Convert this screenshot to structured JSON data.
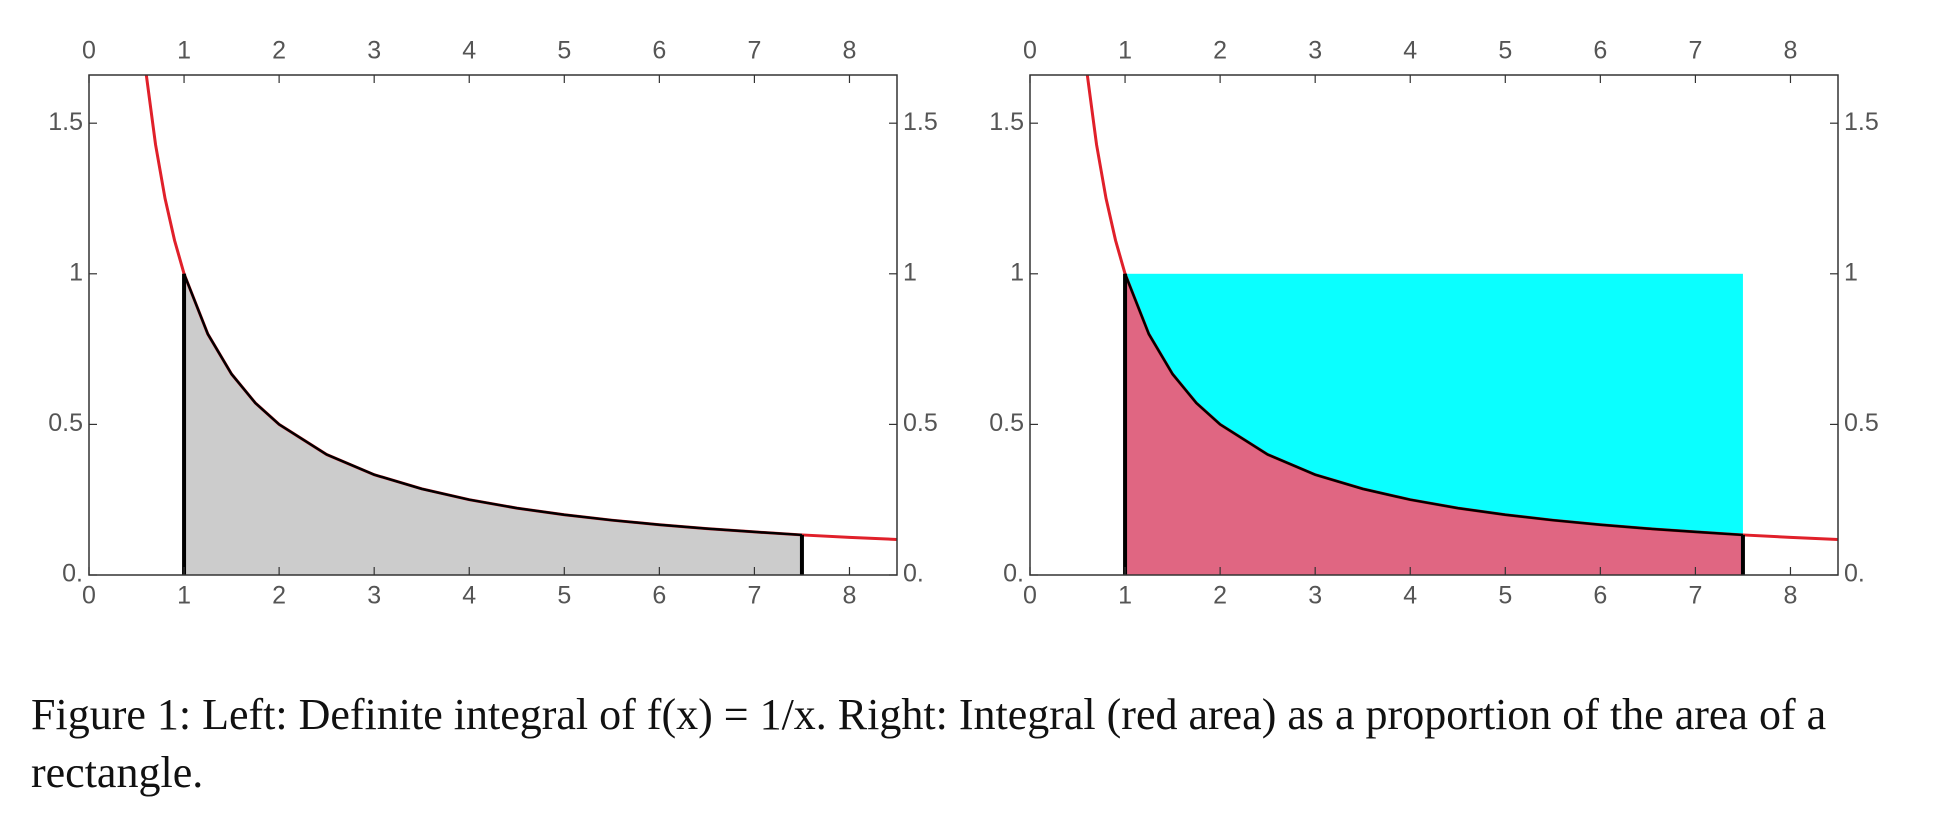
{
  "chart_data": [
    {
      "type": "line",
      "x": [
        0.6,
        0.7,
        0.8,
        0.9,
        1,
        1.25,
        1.5,
        1.75,
        2,
        2.5,
        3,
        3.5,
        4,
        4.5,
        5,
        5.5,
        6,
        6.5,
        7,
        7.5,
        8,
        8.5
      ],
      "values": [
        1.667,
        1.429,
        1.25,
        1.111,
        1,
        0.8,
        0.667,
        0.571,
        0.5,
        0.4,
        0.333,
        0.286,
        0.25,
        0.222,
        0.2,
        0.182,
        0.167,
        0.154,
        0.143,
        0.133,
        0.125,
        0.118
      ],
      "color": "#e0202a",
      "shade": [
        1,
        7.5
      ],
      "shade_color": "#cccccc",
      "shade_edge_color": "#000000",
      "xlim": [
        0,
        8.5
      ],
      "ylim": [
        0,
        1.66
      ],
      "xticks": [
        0,
        1,
        2,
        3,
        4,
        5,
        6,
        7,
        8
      ],
      "yticks": [
        {
          "value": 0,
          "label": "0."
        },
        0.5,
        1,
        1.5
      ]
    },
    {
      "type": "line",
      "x": [
        0.6,
        0.7,
        0.8,
        0.9,
        1,
        1.25,
        1.5,
        1.75,
        2,
        2.5,
        3,
        3.5,
        4,
        4.5,
        5,
        5.5,
        6,
        6.5,
        7,
        7.5,
        8,
        8.5
      ],
      "values": [
        1.667,
        1.429,
        1.25,
        1.111,
        1,
        0.8,
        0.667,
        0.571,
        0.5,
        0.4,
        0.333,
        0.286,
        0.25,
        0.222,
        0.2,
        0.182,
        0.167,
        0.154,
        0.143,
        0.133,
        0.125,
        0.118
      ],
      "color": "#e0202a",
      "shade": [
        1,
        7.5
      ],
      "shade_color": "#e06682",
      "shade_edge_color": "#000000",
      "rect": {
        "x": [
          1,
          7.5
        ],
        "height": 1,
        "color": "#0affff"
      },
      "xlim": [
        0,
        8.5
      ],
      "ylim": [
        0,
        1.66
      ],
      "xticks": [
        0,
        1,
        2,
        3,
        4,
        5,
        6,
        7,
        8
      ],
      "yticks": [
        {
          "value": 0,
          "label": "0."
        },
        0.5,
        1,
        1.5
      ]
    }
  ],
  "caption": "Figure 1: Left: Definite integral of f(x) = 1/x. Right: Integral (red area) as a proportion of the area of a rectangle."
}
